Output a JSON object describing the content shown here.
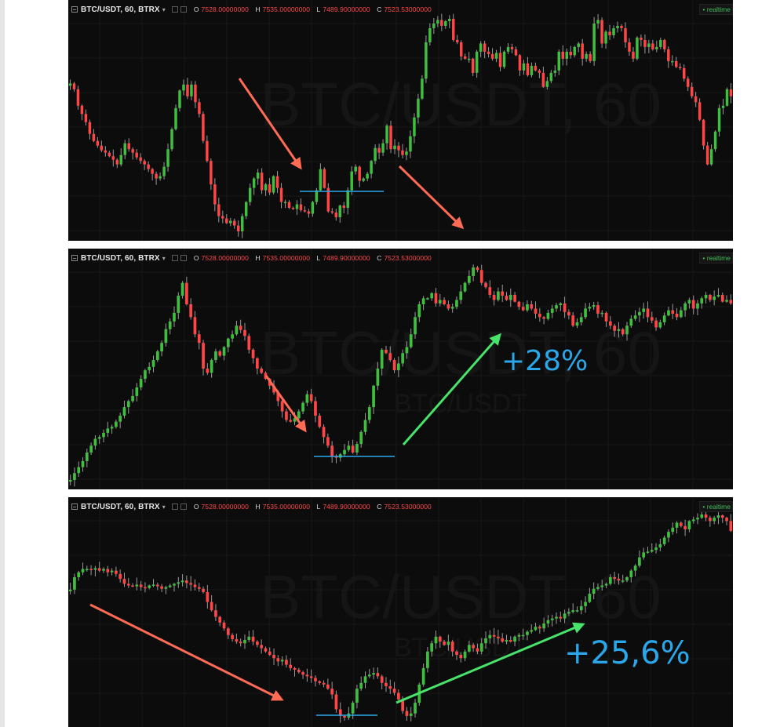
{
  "header": {
    "symbol": "BTC/USDT, 60, BTRX",
    "caret": "▾",
    "ohlc": [
      {
        "key": "O",
        "value": "7528.00000000"
      },
      {
        "key": "H",
        "value": "7535.00000000"
      },
      {
        "key": "L",
        "value": "7489.90000000"
      },
      {
        "key": "C",
        "value": "7523.53000000"
      }
    ],
    "realtime_label": "• realtime"
  },
  "watermark": {
    "main": "BTC/USDT, 60",
    "sub": "BTC/USDT"
  },
  "colors": {
    "background": "#0c0c0c",
    "up": "#3fbf3f",
    "down": "#ff4545",
    "wick": "#9a9a9a",
    "grid": "#181818",
    "arrow_down": "#ff6b55",
    "arrow_up": "#47e36a",
    "support_line": "#2aa7ea",
    "annotation_text": "#2aa7ea"
  },
  "chart_data": [
    {
      "type": "candlestick",
      "title": "BTC/USDT, 60, BTRX",
      "grid": true,
      "closes": [
        161,
        156,
        142,
        135,
        128,
        118,
        112,
        108,
        104,
        102,
        99,
        96,
        92,
        100,
        110,
        105,
        102,
        98,
        95,
        92,
        88,
        84,
        80,
        82,
        90,
        105,
        122,
        140,
        155,
        160,
        150,
        160,
        145,
        135,
        112,
        95,
        75,
        58,
        48,
        46,
        42,
        44,
        40,
        35,
        48,
        60,
        72,
        80,
        85,
        70,
        75,
        68,
        82,
        72,
        60,
        60,
        55,
        54,
        58,
        53,
        52,
        50,
        60,
        70,
        88,
        72,
        52,
        51,
        47,
        57,
        55,
        70,
        86,
        90,
        78,
        80,
        84,
        95,
        106,
        102,
        110,
        125,
        105,
        108,
        104,
        100,
        103,
        116,
        132,
        148,
        165,
        196,
        208,
        212,
        215,
        210,
        214,
        216,
        198,
        196,
        184,
        182,
        182,
        170,
        188,
        195,
        188,
        186,
        182,
        187,
        175,
        188,
        192,
        190,
        185,
        172,
        178,
        168,
        176,
        172,
        170,
        158,
        163,
        170,
        172,
        188,
        182,
        188,
        185,
        192,
        195,
        182,
        186,
        180,
        212,
        215,
        195,
        205,
        202,
        208,
        210,
        208,
        196,
        188,
        182,
        200,
        198,
        192,
        195,
        190,
        192,
        198,
        190,
        180,
        180,
        175,
        174,
        165,
        158,
        150,
        145,
        130,
        108,
        92,
        105,
        120,
        140,
        142,
        156,
        150
      ],
      "annotations": [
        {
          "kind": "down-arrow",
          "label": ""
        },
        {
          "kind": "support-line",
          "label": ""
        },
        {
          "kind": "down-arrow",
          "label": ""
        }
      ]
    },
    {
      "type": "candlestick",
      "title": "BTC/USDT, 60, BTRX",
      "grid": true,
      "closes": [
        20,
        28,
        35,
        42,
        52,
        60,
        68,
        70,
        75,
        80,
        82,
        88,
        95,
        105,
        112,
        118,
        128,
        138,
        148,
        152,
        160,
        170,
        180,
        196,
        205,
        215,
        235,
        250,
        225,
        210,
        190,
        180,
        150,
        145,
        160,
        170,
        165,
        175,
        185,
        190,
        200,
        195,
        188,
        172,
        162,
        150,
        145,
        138,
        130,
        122,
        112,
        100,
        90,
        88,
        92,
        100,
        110,
        120,
        112,
        95,
        82,
        70,
        60,
        48,
        46,
        50,
        55,
        60,
        52,
        62,
        76,
        90,
        105,
        130,
        150,
        172,
        168,
        160,
        148,
        156,
        168,
        175,
        190,
        210,
        225,
        232,
        232,
        238,
        226,
        230,
        225,
        220,
        222,
        230,
        240,
        250,
        258,
        268,
        265,
        250,
        245,
        236,
        230,
        240,
        235,
        230,
        236,
        228,
        222,
        218,
        225,
        220,
        214,
        210,
        208,
        215,
        220,
        224,
        226,
        216,
        212,
        200,
        204,
        210,
        220,
        222,
        224,
        214,
        215,
        205,
        200,
        194,
        196,
        190,
        200,
        208,
        212,
        216,
        220,
        210,
        206,
        198,
        204,
        212,
        218,
        214,
        210,
        218,
        226,
        230,
        220,
        226,
        232,
        236,
        230,
        234,
        236,
        228,
        230,
        226
      ],
      "annotations": [
        {
          "kind": "down-arrow",
          "label": ""
        },
        {
          "kind": "support-line",
          "label": ""
        },
        {
          "kind": "up-arrow",
          "label": "+28%"
        }
      ]
    },
    {
      "type": "candlestick",
      "title": "BTC/USDT, 60, BTRX",
      "grid": true,
      "closes": [
        175,
        190,
        196,
        200,
        200,
        199,
        201,
        198,
        200,
        196,
        198,
        194,
        188,
        182,
        180,
        179,
        181,
        178,
        177,
        180,
        181,
        179,
        176,
        178,
        180,
        182,
        184,
        186,
        183,
        181,
        178,
        176,
        172,
        160,
        150,
        142,
        135,
        128,
        120,
        115,
        112,
        110,
        114,
        118,
        112,
        108,
        104,
        100,
        96,
        92,
        88,
        90,
        84,
        80,
        78,
        75,
        72,
        70,
        68,
        64,
        62,
        60,
        55,
        48,
        30,
        22,
        20,
        25,
        38,
        55,
        62,
        70,
        72,
        74,
        70,
        62,
        58,
        55,
        50,
        42,
        28,
        22,
        25,
        38,
        60,
        80,
        100,
        110,
        118,
        112,
        108,
        112,
        100,
        96,
        92,
        100,
        108,
        104,
        100,
        110,
        116,
        120,
        118,
        116,
        112,
        114,
        112,
        118,
        120,
        120,
        124,
        126,
        130,
        128,
        134,
        138,
        140,
        142,
        140,
        146,
        148,
        150,
        150,
        155,
        160,
        170,
        176,
        178,
        180,
        182,
        190,
        188,
        186,
        186,
        190,
        198,
        204,
        214,
        220,
        221,
        223,
        226,
        230,
        238,
        245,
        250,
        256,
        252,
        248,
        258,
        260,
        262,
        266,
        262,
        258,
        262,
        265,
        262,
        258,
        246
      ],
      "annotations": [
        {
          "kind": "down-arrow",
          "label": ""
        },
        {
          "kind": "support-line",
          "label": ""
        },
        {
          "kind": "up-arrow",
          "label": "+25,6%"
        }
      ]
    }
  ]
}
